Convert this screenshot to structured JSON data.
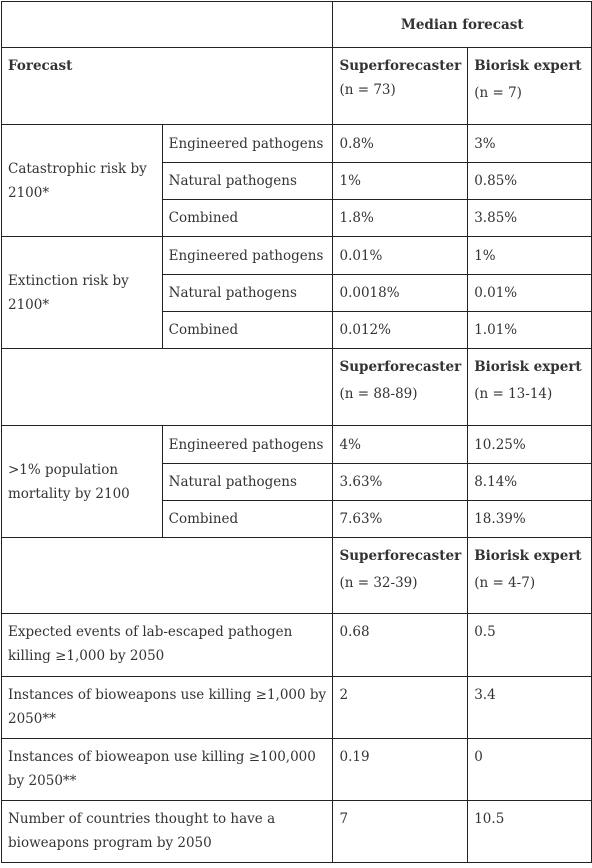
{
  "header": {
    "median_forecast": "Median forecast",
    "forecast": "Forecast",
    "superforecaster": "Superforecaster",
    "superforecaster_n": "(n = 73)",
    "biorisk_expert": "Biorisk expert",
    "biorisk_expert_n": "(n = 7)"
  },
  "catastrophic": {
    "label": "Catastrophic risk by 2100*",
    "rows": [
      {
        "type": "Engineered pathogens",
        "super": "0.8%",
        "bio": "3%"
      },
      {
        "type": "Natural pathogens",
        "super": "1%",
        "bio": "0.85%"
      },
      {
        "type": "Combined",
        "super": "1.8%",
        "bio": "3.85%"
      }
    ]
  },
  "extinction": {
    "label": "Extinction risk by 2100*",
    "rows": [
      {
        "type": "Engineered pathogens",
        "super": "0.01%",
        "bio": "1%"
      },
      {
        "type": "Natural pathogens",
        "super": "0.0018%",
        "bio": "0.01%"
      },
      {
        "type": "Combined",
        "super": "0.012%",
        "bio": "1.01%"
      }
    ]
  },
  "subheader_2": {
    "superforecaster": "Superforecaster",
    "superforecaster_n": "(n = 88-89)",
    "biorisk_expert": "Biorisk expert",
    "biorisk_expert_n": "(n = 13-14)"
  },
  "mortality": {
    "label": ">1% population mortality by 2100",
    "rows": [
      {
        "type": "Engineered pathogens",
        "super": "4%",
        "bio": "10.25%"
      },
      {
        "type": "Natural pathogens",
        "super": "3.63%",
        "bio": "8.14%"
      },
      {
        "type": "Combined",
        "super": "7.63%",
        "bio": "18.39%"
      }
    ]
  },
  "subheader_3": {
    "superforecaster": "Superforecaster",
    "superforecaster_n": "(n = 32-39)",
    "biorisk_expert": "Biorisk expert",
    "biorisk_expert_n": "(n = 4-7)"
  },
  "other_rows": [
    {
      "label": "Expected events of lab-escaped pathogen killing ≥1,000 by 2050",
      "super": "0.68",
      "bio": "0.5"
    },
    {
      "label": "Instances of bioweapons use killing  ≥1,000 by 2050**",
      "super": "2",
      "bio": "3.4"
    },
    {
      "label": "Instances of bioweapon use killing ≥100,000 by 2050**",
      "super": "0.19",
      "bio": "0"
    },
    {
      "label": "Number of countries thought to have a bioweapons program by 2050",
      "super": "7",
      "bio": "10.5"
    }
  ]
}
